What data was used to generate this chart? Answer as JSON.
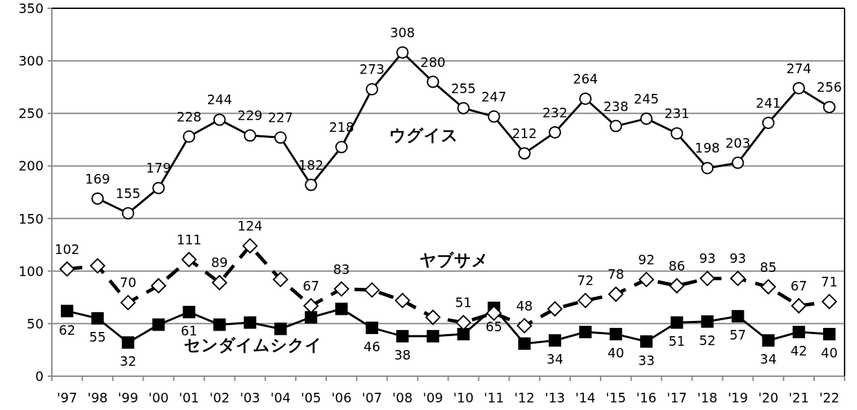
{
  "chart_data": {
    "type": "line",
    "categories": [
      "'97",
      "'98",
      "'99",
      "'00",
      "'01",
      "'02",
      "'03",
      "'04",
      "'05",
      "'06",
      "'07",
      "'08",
      "'09",
      "'10",
      "'11",
      "'12",
      "'13",
      "'14",
      "'15",
      "'16",
      "'17",
      "'18",
      "'19",
      "'20",
      "'21",
      "'22"
    ],
    "ylim": [
      0,
      350
    ],
    "yticks": [
      0,
      50,
      100,
      150,
      200,
      250,
      300,
      350
    ],
    "grid": "y",
    "legend": false,
    "series": [
      {
        "name": "ウグイス",
        "color": "#000000",
        "marker": "circle",
        "line_style": "solid",
        "values": [
          null,
          169,
          155,
          179,
          228,
          244,
          229,
          227,
          182,
          218,
          273,
          308,
          280,
          255,
          247,
          212,
          232,
          264,
          238,
          245,
          231,
          198,
          203,
          241,
          274,
          256
        ],
        "value_labels": [
          null,
          "169",
          "155",
          "179",
          "228",
          "244",
          "229",
          "227",
          "182",
          "218",
          "273",
          "308",
          "280",
          "255",
          "247",
          "212",
          "232",
          "264",
          "238",
          "245",
          "231",
          "198",
          "203",
          "241",
          "274",
          "256"
        ]
      },
      {
        "name": "ヤブサメ",
        "color": "#000000",
        "marker": "diamond",
        "line_style": "dashed",
        "values": [
          102,
          105,
          70,
          86,
          111,
          89,
          124,
          92,
          67,
          83,
          82,
          72,
          56,
          51,
          60,
          48,
          64,
          72,
          78,
          92,
          86,
          93,
          93,
          85,
          67,
          71
        ],
        "value_labels": [
          "102",
          null,
          "70",
          null,
          "111",
          "89",
          "124",
          null,
          "67",
          "83",
          null,
          null,
          null,
          "51",
          null,
          "48",
          null,
          "72",
          "78",
          "92",
          "86",
          "93",
          "93",
          "85",
          "67",
          "71"
        ]
      },
      {
        "name": "センダイムシクイ",
        "color": "#000000",
        "marker": "square",
        "line_style": "solid",
        "values": [
          62,
          55,
          32,
          49,
          61,
          49,
          51,
          45,
          56,
          64,
          46,
          38,
          38,
          40,
          65,
          31,
          34,
          42,
          40,
          33,
          51,
          52,
          57,
          34,
          42,
          40
        ],
        "value_labels": [
          "62",
          "55",
          "32",
          null,
          "61",
          null,
          null,
          null,
          null,
          null,
          "46",
          "38",
          null,
          null,
          "65",
          null,
          "34",
          null,
          "40",
          "33",
          "51",
          "52",
          "57",
          "34",
          "42",
          "40"
        ]
      }
    ]
  }
}
